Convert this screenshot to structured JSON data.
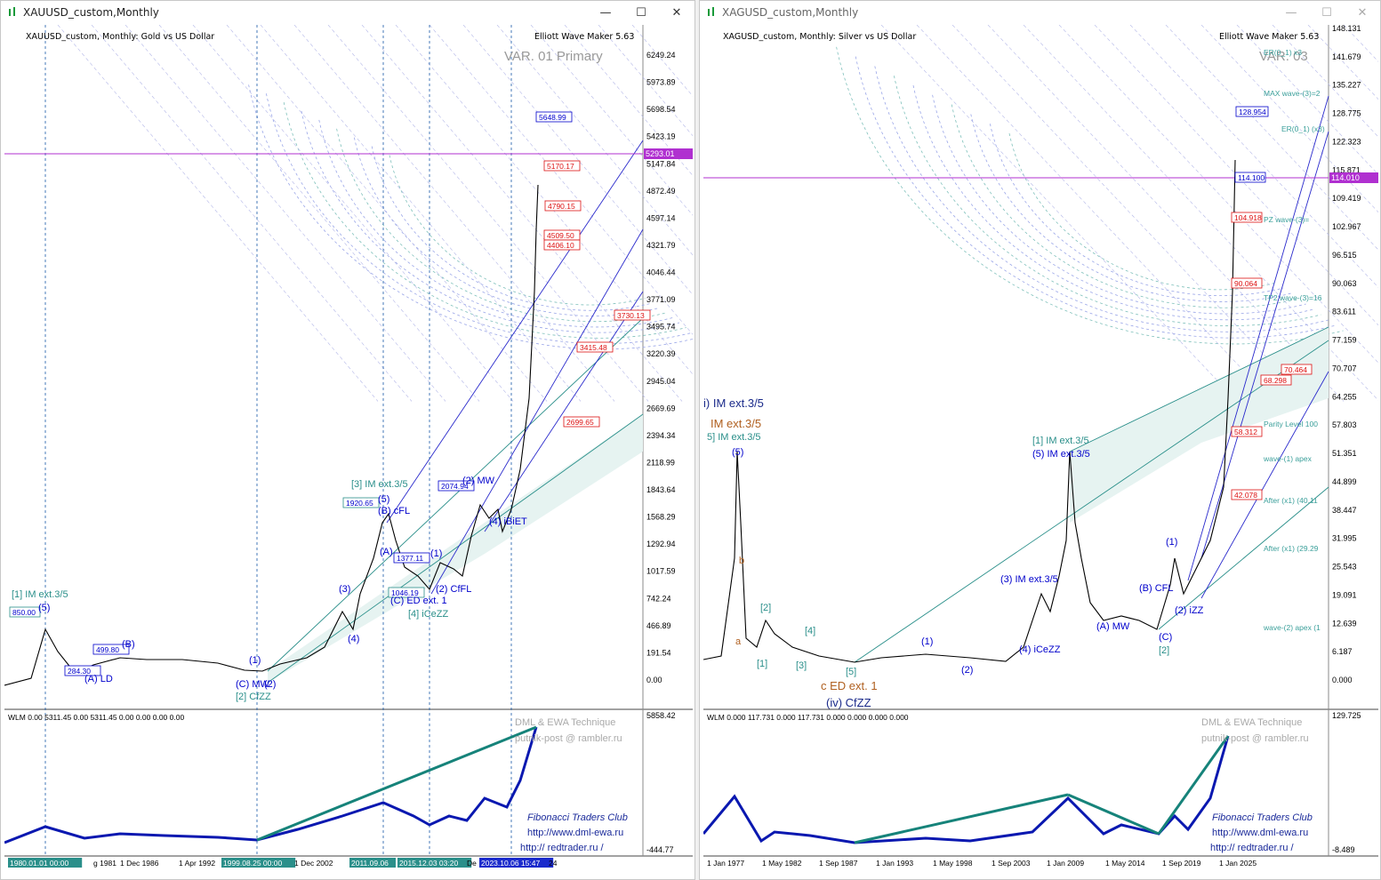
{
  "left": {
    "window_title": "XAUUSD_custom,Monthly",
    "header": "XAUUSD_custom, Monthly:  Gold vs US Dollar",
    "brand": "Elliott Wave Maker 5.63",
    "variant": "VAR. 01 Primary",
    "price_axis": [
      "6249.24",
      "5973.89",
      "5698.54",
      "5423.19",
      "5147.84",
      "4872.49",
      "4597.14",
      "4321.79",
      "4046.44",
      "3771.09",
      "3495.74",
      "3220.39",
      "2945.04",
      "2669.69",
      "2394.34",
      "2118.99",
      "1843.64",
      "1568.29",
      "1292.94",
      "1017.59",
      "742.24",
      "466.89",
      "191.54",
      "0.00"
    ],
    "current_price": "5293.01",
    "boxes": [
      "5648.99",
      "5170.17",
      "4790.15",
      "4509.50",
      "4406.10",
      "3730.13",
      "3415.48",
      "2699.65",
      "2074.94",
      "1920.65",
      "1377.11",
      "1046.19",
      "850.00",
      "499.80",
      "284.30"
    ],
    "wave_labels": [
      "[1] IM ext.3/5",
      "(5)",
      "(A) LD",
      "(B)",
      "(C) MW",
      "[2] CfZZ",
      "(1)",
      "(2)",
      "(3)",
      "(4)",
      "[3] IM ext.3/5",
      "(5)",
      "(B) cFL",
      "(A)",
      "(1)",
      "(C) ED ext. 1",
      "[4] iCeZZ",
      "(2) CfFL",
      "(2) MW",
      "(4) iBiET"
    ],
    "indicator_header": "WLM 0.00 5311.45 0.00 5311.45 0.00 0.00 0.00 0.00",
    "indicator_axis": [
      "5858.42",
      "-444.77"
    ],
    "watermark": [
      "DML & EWA Technique",
      "putnik-post @ rambler.ru",
      "Fibonacci    Traders    Club",
      "http://www.dml-ewa.ru",
      "http:// redtrader.ru /"
    ],
    "time_axis": [
      "1980.01.01 00:00",
      "g 1981",
      "1 Dec 1986",
      "1 Apr 1992",
      "1999.08.25 00:00",
      "1 Dec 2002",
      "2011.09.06",
      "2015.12.03 03:20",
      "De",
      "2023.10.06 15:47",
      "24"
    ]
  },
  "right": {
    "window_title": "XAGUSD_custom,Monthly",
    "header": "XAGUSD_custom, Monthly:  Silver vs US Dollar",
    "brand": "Elliott Wave Maker 5.63",
    "variant": "VAR. 03",
    "price_axis": [
      "148.131",
      "141.679",
      "135.227",
      "128.775",
      "122.323",
      "115.871",
      "109.419",
      "102.967",
      "96.515",
      "90.063",
      "83.611",
      "77.159",
      "70.707",
      "64.255",
      "57.803",
      "51.351",
      "44.899",
      "38.447",
      "31.995",
      "25.543",
      "19.091",
      "12.639",
      "6.187",
      "0.000"
    ],
    "current_price": "114.010",
    "boxes": [
      "128.954",
      "114.100",
      "104.918",
      "90.064",
      "70.464",
      "68.298",
      "58.312",
      "42.078"
    ],
    "zone_labels": [
      "ER(0_1) x3",
      "MAX wave-(3)=2",
      "ER(0_1) (x3)",
      "PZ wave-(3)=",
      "TP2 wave-(3)=16",
      "Parity Level 100",
      "wave-(1) apex",
      "After (x1) (40.11",
      "After (x1) (29.29",
      "wave-(2) apex (1"
    ],
    "wave_labels": [
      "i) IM ext.3/5",
      "IM ext.3/5",
      "5] IM ext.3/5",
      "(5)",
      "b",
      "a",
      "[2]",
      "[4]",
      "[1]",
      "[3]",
      "[5]",
      "c ED ext. 1",
      "(iv) CfZZ",
      "(1)",
      "(2)",
      "(3) IM ext.3/5",
      "(4) iCeZZ",
      "[1] IM ext.3/5",
      "(5) IM ext.3/5",
      "(A) MW",
      "(B) CFL",
      "(C)",
      "[2]",
      "(2) iZZ",
      "(1)"
    ],
    "indicator_header": "WLM 0.000 117.731 0.000 117.731 0.000 0.000 0.000 0.000",
    "indicator_axis": [
      "129.725",
      "-8.489"
    ],
    "watermark": [
      "DML & EWA Technique",
      "putnik-post @ rambler.ru",
      "Fibonacci    Traders    Club",
      "http://www.dml-ewa.ru",
      "http:// redtrader.ru /"
    ],
    "time_axis": [
      "1 Jan 1977",
      "1 May 1982",
      "1 Sep 1987",
      "1 Jan 1993",
      "1 May 1998",
      "1 Sep 2003",
      "1 Jan 2009",
      "1 May 2014",
      "1 Sep 2019",
      "1 Jan 2025"
    ]
  },
  "colors": {
    "price": "#000000",
    "wave": "#0000cc",
    "teal": "#2a8f8a",
    "red": "#d11",
    "purple": "#b030d0",
    "ind_blue": "#0a18b0",
    "ind_teal": "#16837a"
  }
}
